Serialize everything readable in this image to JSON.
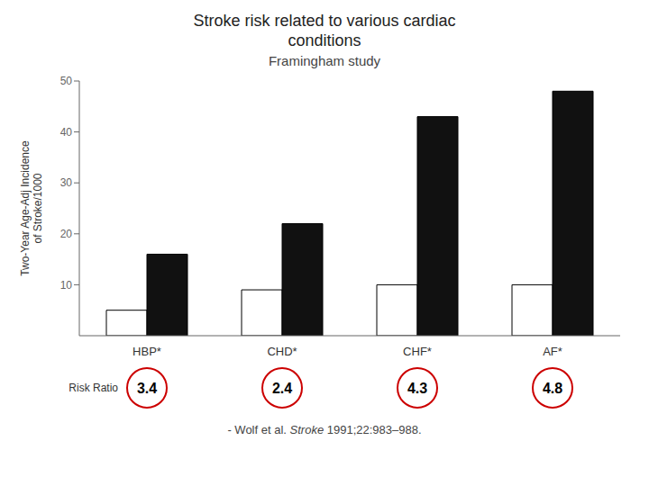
{
  "chart_data": {
    "type": "bar",
    "title": "Stroke risk related to various cardiac\nconditions",
    "subtitle": "Framingham study",
    "categories": [
      "HBP*",
      "CHD*",
      "CHF*",
      "AF*"
    ],
    "series": [
      {
        "color": "#ffffff",
        "values": [
          5,
          9,
          10,
          10
        ]
      },
      {
        "color": "#111111",
        "values": [
          16,
          22,
          43,
          48
        ]
      }
    ],
    "ylabel": "Two-Year Age-Adj Incidence\nof Stroke/1000",
    "ylim": [
      0,
      50
    ],
    "yticks": [
      10,
      20,
      30,
      40,
      50
    ],
    "grid": false,
    "risk_ratios": {
      "label": "Risk Ratio",
      "values": [
        3.4,
        2.4,
        4.3,
        4.8
      ],
      "color": "#cc0000"
    },
    "annotations": [
      "- Wolf et al.",
      "Stroke",
      "1991;22:983–988."
    ]
  }
}
